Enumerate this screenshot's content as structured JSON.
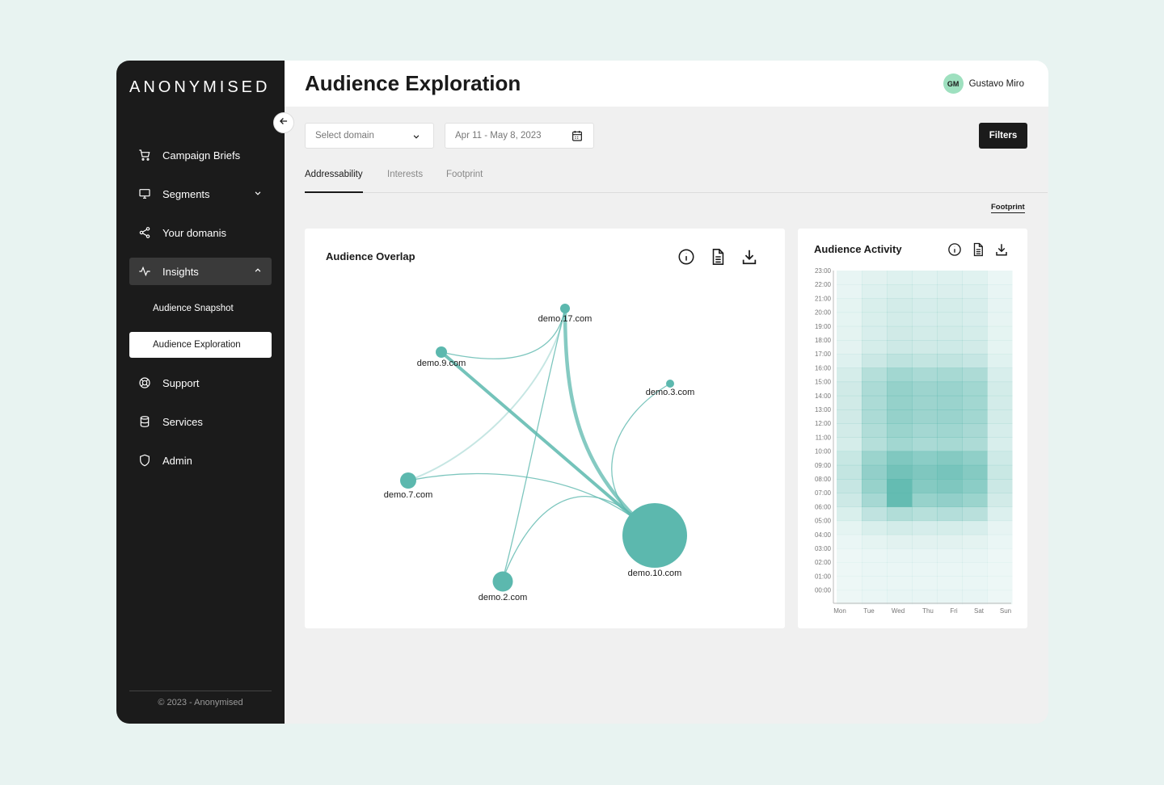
{
  "brand": {
    "logo": "ANONYMISED"
  },
  "sidebar": {
    "items": [
      {
        "label": "Campaign Briefs",
        "icon": "cart-icon"
      },
      {
        "label": "Segments",
        "icon": "monitor-icon"
      },
      {
        "label": "Your domanis",
        "icon": "share-icon"
      },
      {
        "label": "Insights",
        "icon": "activity-icon"
      },
      {
        "label": "Support",
        "icon": "lifebuoy-icon"
      },
      {
        "label": "Services",
        "icon": "database-icon"
      },
      {
        "label": "Admin",
        "icon": "shield-icon"
      }
    ],
    "sub_items": [
      "Audience Snapshot",
      "Audience Exploration"
    ],
    "copyright": "© 2023 - Anonymised"
  },
  "header": {
    "title": "Audience Exploration",
    "user": {
      "initials": "GM",
      "name": "Gustavo Miro"
    }
  },
  "toolbar": {
    "domain_placeholder": "Select domain",
    "date_range": "Apr 11 - May 8, 2023",
    "filters_label": "Filters"
  },
  "tabs": [
    "Addressability",
    "Interests",
    "Footprint"
  ],
  "footprint_link": "Footprint",
  "colors": {
    "teal": "#5cb8ae",
    "sidebar": "#1b1b1b",
    "accent_avatar": "#9ee0bf"
  },
  "overlap": {
    "title": "Audience Overlap",
    "nodes": [
      {
        "id": "demo.17.com",
        "size": "small"
      },
      {
        "id": "demo.9.com",
        "size": "small"
      },
      {
        "id": "demo.3.com",
        "size": "small"
      },
      {
        "id": "demo.7.com",
        "size": "medium"
      },
      {
        "id": "demo.2.com",
        "size": "medium"
      },
      {
        "id": "demo.10.com",
        "size": "large"
      }
    ]
  },
  "activity": {
    "title": "Audience Activity",
    "hours": [
      "23:00",
      "22:00",
      "21:00",
      "20:00",
      "19:00",
      "18:00",
      "17:00",
      "16:00",
      "15:00",
      "14:00",
      "13:00",
      "12:00",
      "11:00",
      "10:00",
      "09:00",
      "08:00",
      "07:00",
      "06:00",
      "05:00",
      "04:00",
      "03:00",
      "02:00",
      "01:00",
      "00:00"
    ],
    "days": [
      "Mon",
      "Tue",
      "Wed",
      "Thu",
      "Fri",
      "Sat",
      "Sun"
    ]
  }
}
